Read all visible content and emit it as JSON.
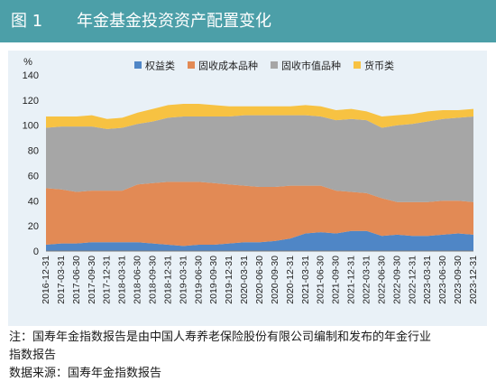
{
  "figure": {
    "number": "图 1",
    "title": "年金基金投资资产配置变化",
    "note_line1": "注：国寿年金指数报告是由中国人寿养老保险股份有限公司编制和发布的年金行业",
    "note_line2": "指数报告",
    "source": "数据来源：国寿年金指数报告"
  },
  "colors": {
    "title_bar": "#4c9fa8",
    "chart_bg": "#e9f1f7",
    "equity": "#4f86c6",
    "fixed_cost": "#e28a55",
    "fixed_market": "#a6a6a6",
    "money": "#f7c242"
  },
  "chart_data": {
    "type": "area",
    "stacked": true,
    "y_unit": "%",
    "ylim": [
      0,
      140
    ],
    "yticks": [
      0,
      20,
      40,
      60,
      80,
      100,
      120,
      140
    ],
    "grid": false,
    "legend_position": "top",
    "x": [
      "2016-12-31",
      "2017-03-31",
      "2017-06-30",
      "2017-09-30",
      "2017-12-31",
      "2018-03-31",
      "2018-06-30",
      "2018-09-30",
      "2018-12-31",
      "2019-03-31",
      "2019-06-30",
      "2019-09-30",
      "2019-12-31",
      "2020-03-31",
      "2020-06-30",
      "2020-09-30",
      "2020-12-31",
      "2021-03-31",
      "2021-06-30",
      "2021-09-30",
      "2021-12-31",
      "2022-03-31",
      "2022-06-30",
      "2022-09-30",
      "2022-12-31",
      "2023-03-31",
      "2023-06-30",
      "2023-09-30",
      "2023-12-31"
    ],
    "series": [
      {
        "name": "权益类",
        "color_key": "equity",
        "values": [
          5,
          6,
          6,
          7,
          7,
          7,
          7,
          6,
          5,
          4,
          5,
          5,
          6,
          7,
          7,
          8,
          10,
          14,
          15,
          14,
          16,
          16,
          12,
          13,
          12,
          12,
          13,
          14,
          13
        ]
      },
      {
        "name": "固收成本品种",
        "color_key": "fixed_cost",
        "values": [
          45,
          43,
          41,
          41,
          41,
          41,
          46,
          48,
          50,
          51,
          50,
          49,
          47,
          45,
          44,
          43,
          42,
          38,
          37,
          34,
          31,
          30,
          30,
          26,
          27,
          27,
          27,
          26,
          26
        ]
      },
      {
        "name": "固收市值品种",
        "color_key": "fixed_market",
        "values": [
          48,
          50,
          52,
          51,
          49,
          50,
          48,
          49,
          51,
          52,
          52,
          53,
          54,
          56,
          57,
          57,
          56,
          56,
          55,
          56,
          58,
          58,
          56,
          61,
          62,
          64,
          65,
          66,
          68
        ]
      },
      {
        "name": "货币类",
        "color_key": "money",
        "values": [
          9,
          8,
          8,
          9,
          8,
          8,
          9,
          10,
          10,
          10,
          10,
          9,
          8,
          7,
          7,
          7,
          7,
          8,
          8,
          8,
          8,
          7,
          9,
          8,
          8,
          8,
          7,
          6,
          6
        ]
      }
    ]
  }
}
